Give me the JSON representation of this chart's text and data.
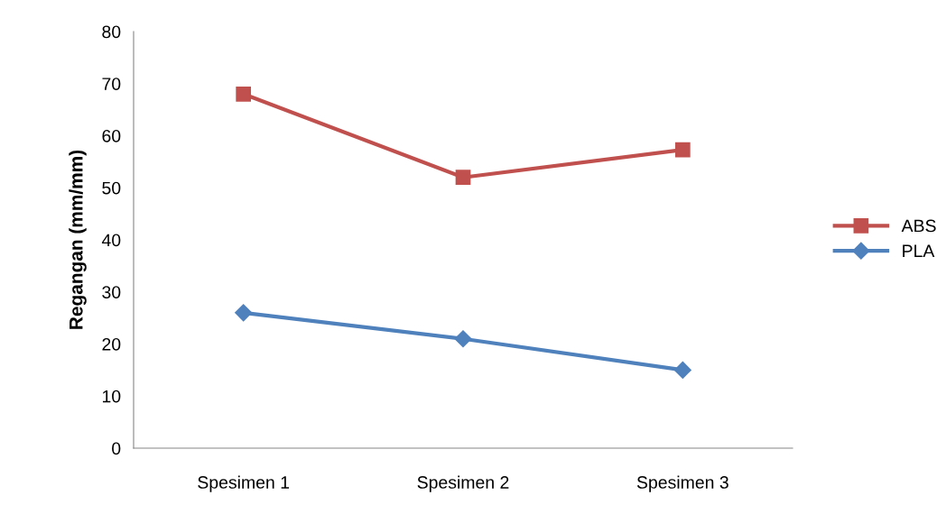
{
  "chart_data": {
    "type": "line",
    "ylabel": "Regangan (mm/mm)",
    "categories": [
      "Spesimen 1",
      "Spesimen 2",
      "Spesimen 3"
    ],
    "series": [
      {
        "name": "ABS",
        "color": "#c0504d",
        "values": [
          68,
          52,
          57.3
        ],
        "marker": "square"
      },
      {
        "name": "PLA",
        "color": "#4f81bd",
        "values": [
          26,
          21,
          15
        ],
        "marker": "diamond"
      }
    ],
    "ylim": [
      0,
      80
    ],
    "yticks": [
      0,
      10,
      20,
      30,
      40,
      50,
      60,
      70,
      80
    ],
    "grid": false,
    "legend": "right",
    "line_style": "solid"
  }
}
